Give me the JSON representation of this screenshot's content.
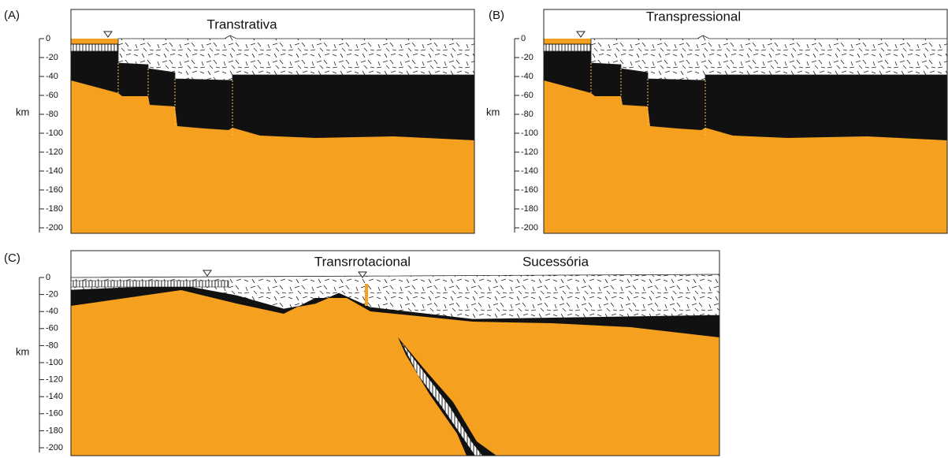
{
  "panels": [
    {
      "label": "(A)",
      "titles": [
        "Transtrativa"
      ],
      "axis_label": "km",
      "ticks": [
        0,
        -20,
        -40,
        -60,
        -80,
        -100,
        -120,
        -140,
        -160,
        -180,
        -200
      ]
    },
    {
      "label": "(B)",
      "titles": [
        "Transpressional"
      ],
      "axis_label": "km",
      "ticks": [
        0,
        -20,
        -40,
        -60,
        -80,
        -100,
        -120,
        -140,
        -160,
        -180,
        -200
      ]
    },
    {
      "label": "(C)",
      "titles": [
        "Transrrotacional",
        "Sucessória"
      ],
      "axis_label": "km",
      "ticks": [
        0,
        -20,
        -40,
        -60,
        -80,
        -100,
        -120,
        -140,
        -160,
        -180,
        -200
      ]
    }
  ]
}
